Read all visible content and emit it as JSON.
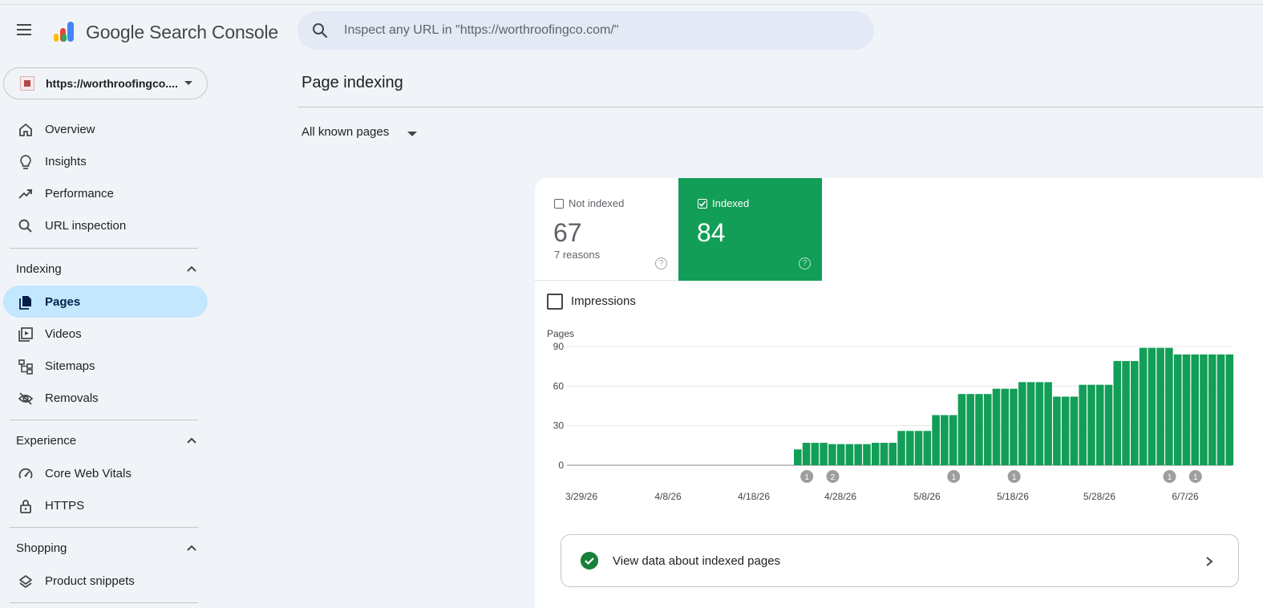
{
  "header": {
    "brand": "Google Search Console",
    "search_placeholder": "Inspect any URL in \"https://worthroofingco.com/\""
  },
  "property": {
    "url": "https://worthroofingco...."
  },
  "nav": {
    "overview": "Overview",
    "insights": "Insights",
    "performance": "Performance",
    "url_inspection": "URL inspection",
    "indexing_section": "Indexing",
    "pages": "Pages",
    "videos": "Videos",
    "sitemaps": "Sitemaps",
    "removals": "Removals",
    "experience_section": "Experience",
    "core_web_vitals": "Core Web Vitals",
    "https": "HTTPS",
    "shopping_section": "Shopping",
    "product_snippets": "Product snippets"
  },
  "main": {
    "title": "Page indexing",
    "filter": "All known pages",
    "not_indexed": {
      "label": "Not indexed",
      "value": "67",
      "sub": "7 reasons",
      "checked": false
    },
    "indexed": {
      "label": "Indexed",
      "value": "84",
      "checked": true
    },
    "impressions_label": "Impressions",
    "view_data_label": "View data about indexed pages"
  },
  "colors": {
    "indexed_green": "#129e57",
    "active_nav": "#c2e7ff",
    "annotation_gray": "#9e9e9e"
  },
  "chart_data": {
    "type": "bar",
    "ylabel": "Pages",
    "ylim": [
      0,
      90
    ],
    "yticks": [
      0,
      30,
      60,
      90
    ],
    "x_tick_labels": [
      "3/29/26",
      "4/8/26",
      "4/18/26",
      "4/28/26",
      "5/8/26",
      "5/18/26",
      "5/28/26",
      "6/7/26"
    ],
    "series": [
      {
        "values": [
          0,
          0,
          0,
          0,
          0,
          0,
          0,
          0,
          0,
          0,
          0,
          0,
          0,
          0,
          0,
          0,
          0,
          0,
          0,
          0,
          0,
          0,
          0,
          0,
          0,
          0,
          12,
          17,
          17,
          17,
          16,
          16,
          16,
          16,
          16,
          17,
          17,
          17,
          26,
          26,
          26,
          26,
          38,
          38,
          38,
          54,
          54,
          54,
          54,
          58,
          58,
          58,
          63,
          63,
          63,
          63,
          52,
          52,
          52,
          61,
          61,
          61,
          61,
          79,
          79,
          79,
          89,
          89,
          89,
          89,
          84,
          84,
          84,
          84,
          84,
          84,
          84
        ]
      }
    ],
    "annotations": [
      {
        "bar_index": 27,
        "label": "1"
      },
      {
        "bar_index": 30,
        "label": "2"
      },
      {
        "bar_index": 44,
        "label": "1"
      },
      {
        "bar_index": 51,
        "label": "1"
      },
      {
        "bar_index": 69,
        "label": "1"
      },
      {
        "bar_index": 72,
        "label": "1"
      }
    ]
  }
}
